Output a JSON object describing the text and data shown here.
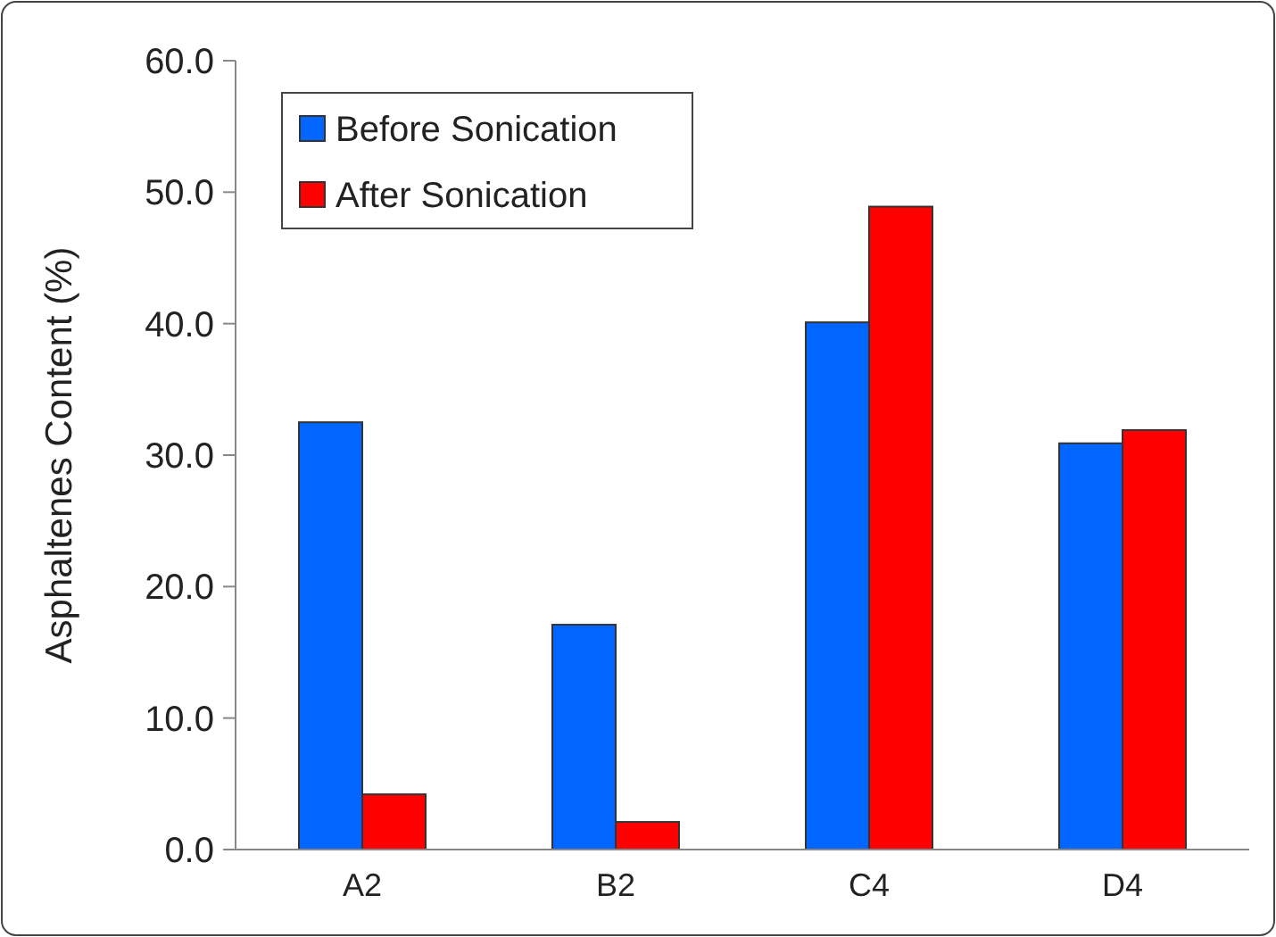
{
  "chart_data": {
    "type": "bar",
    "ylabel": "Asphaltenes Content (%)",
    "categories": [
      "A2",
      "B2",
      "C4",
      "D4"
    ],
    "series": [
      {
        "name": "Before Sonication",
        "color": "#0066ff",
        "values": [
          32.5,
          17.1,
          40.1,
          30.9
        ]
      },
      {
        "name": "After Sonication",
        "color": "#ff0000",
        "values": [
          4.2,
          2.1,
          48.9,
          31.9
        ]
      }
    ],
    "ylim": [
      0,
      60
    ],
    "yticks": [
      {
        "value": 0,
        "label": "0.0"
      },
      {
        "value": 10,
        "label": "10.0"
      },
      {
        "value": 20,
        "label": "20.0"
      },
      {
        "value": 30,
        "label": "30.0"
      },
      {
        "value": 40,
        "label": "40.0"
      },
      {
        "value": 50,
        "label": "50.0"
      },
      {
        "value": 60,
        "label": "60.0"
      }
    ],
    "legend": "top left",
    "grid": false
  }
}
